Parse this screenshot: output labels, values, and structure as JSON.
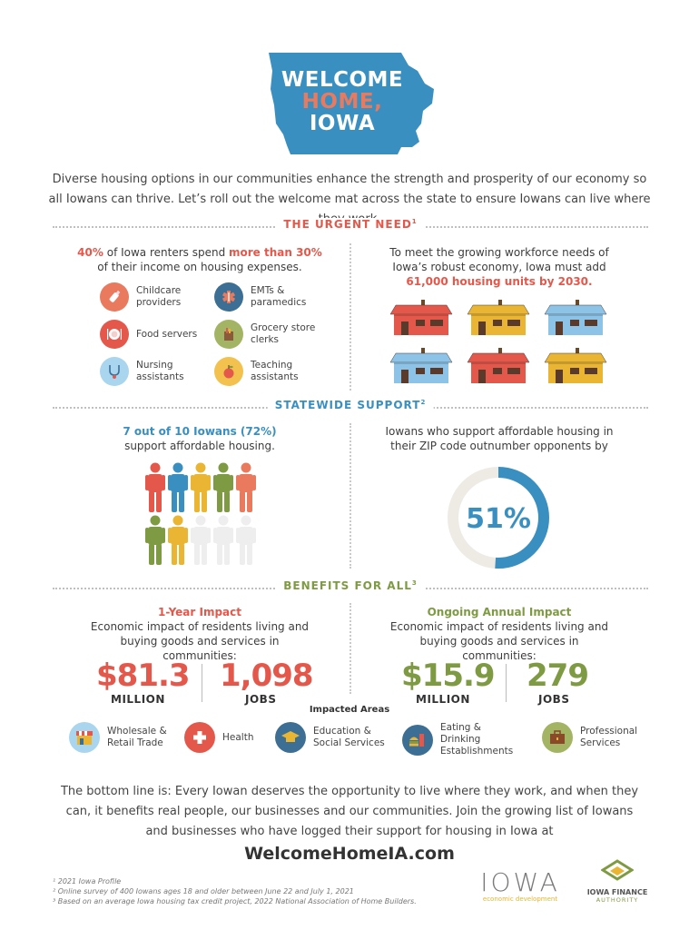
{
  "header": {
    "title_line1": "WELCOME",
    "title_line2": "HOME,",
    "title_line3": "IOWA"
  },
  "intro": "Diverse housing options in our communities enhance the strength and prosperity of our economy so all Iowans can thrive. Let’s roll out the welcome mat across the state to ensure Iowans can live where they work.",
  "urgent_need": {
    "heading": "THE URGENT NEED",
    "footnote_mark": "1",
    "renters_pct": "40%",
    "renters_text_a": " of Iowa renters spend ",
    "renters_more": "more than 30%",
    "renters_text_b": "of their income on housing expenses.",
    "jobs": [
      {
        "label": "Childcare providers",
        "icon": "baby-bottle-icon",
        "color": "#e97a5e"
      },
      {
        "label": "EMTs & paramedics",
        "icon": "medical-star-icon",
        "color": "#3d6f94"
      },
      {
        "label": "Food servers",
        "icon": "plate-icon",
        "color": "#e4584b"
      },
      {
        "label": "Grocery store clerks",
        "icon": "grocery-bag-icon",
        "color": "#a3b564"
      },
      {
        "label": "Nursing assistants",
        "icon": "stethoscope-icon",
        "color": "#a9d5ee"
      },
      {
        "label": "Teaching assistants",
        "icon": "apple-icon",
        "color": "#f2c14e"
      }
    ],
    "workforce_text_a": "To meet the growing workforce needs of",
    "workforce_text_b": "Iowa’s robust economy, Iowa must add",
    "workforce_units": "61,000 housing units by 2030.",
    "houses": [
      "#e4584b",
      "#e9b532",
      "#8dc3e6",
      "#8dc3e6",
      "#e4584b",
      "#e9b532"
    ]
  },
  "statewide_support": {
    "heading": "STATEWIDE SUPPORT",
    "footnote_mark": "2",
    "iowans_stat": "7 out of 10 Iowans (72%)",
    "iowans_text": "support affordable housing.",
    "people_colors": [
      "#e4584b",
      "#3a8fc1",
      "#e9b532",
      "#7e9b43",
      "#e97a5e",
      "#7e9b43",
      "#e9b532",
      "#eeeeee",
      "#eeeeee",
      "#eeeeee"
    ],
    "zip_text": "Iowans who support affordable housing in their ZIP code outnumber opponents by",
    "donut_value": "51%",
    "donut_fraction": 0.51
  },
  "benefits": {
    "heading": "BENEFITS FOR ALL",
    "footnote_mark": "3",
    "one_year": {
      "title": "1-Year Impact",
      "desc": "Economic impact of residents living and buying goods and services in communities:",
      "amount": "$81.3",
      "amount_unit": "MILLION",
      "jobs": "1,098",
      "jobs_unit": "JOBS"
    },
    "ongoing": {
      "title": "Ongoing Annual Impact",
      "desc": "Economic impact of residents living and buying goods and services in communities:",
      "amount": "$15.9",
      "amount_unit": "MILLION",
      "jobs": "279",
      "jobs_unit": "JOBS"
    },
    "impacted_label": "Impacted Areas",
    "areas": [
      {
        "label": "Wholesale & Retail Trade",
        "icon": "storefront-icon",
        "color": "#a9d5ee"
      },
      {
        "label": "Health",
        "icon": "health-cross-icon",
        "color": "#e4584b"
      },
      {
        "label": "Education & Social Services",
        "icon": "graduation-cap-icon",
        "color": "#3d6f94"
      },
      {
        "label": "Eating & Drinking Establishments",
        "icon": "burger-drink-icon",
        "color": "#3d6f94"
      },
      {
        "label": "Professional Services",
        "icon": "briefcase-icon",
        "color": "#a3b564"
      }
    ]
  },
  "bottom_line": "The bottom line is: Every Iowan deserves the opportunity to live where they work, and when they can, it benefits real people, our businesses and our communities. Join the growing list of Iowans and businesses who have logged their support for housing in Iowa at",
  "url": "WelcomeHomeIA.com",
  "footnotes": [
    "¹ 2021 Iowa Profile",
    "² Online survey of 400 Iowans ages 18 and older between June 22 and July 1, 2021",
    "³ Based on an average Iowa housing tax credit project, 2022 National Association of Home Builders."
  ],
  "logos": {
    "iowa": "IOWA",
    "iowa_sub": "economic development",
    "ifa_line1": "IOWA FINANCE",
    "ifa_line2": "AUTHORITY"
  },
  "colors": {
    "red": "#e4584b",
    "blue": "#3a8fc1",
    "green": "#7e9b43",
    "orange": "#e97a5e",
    "yellow": "#e9b532"
  }
}
